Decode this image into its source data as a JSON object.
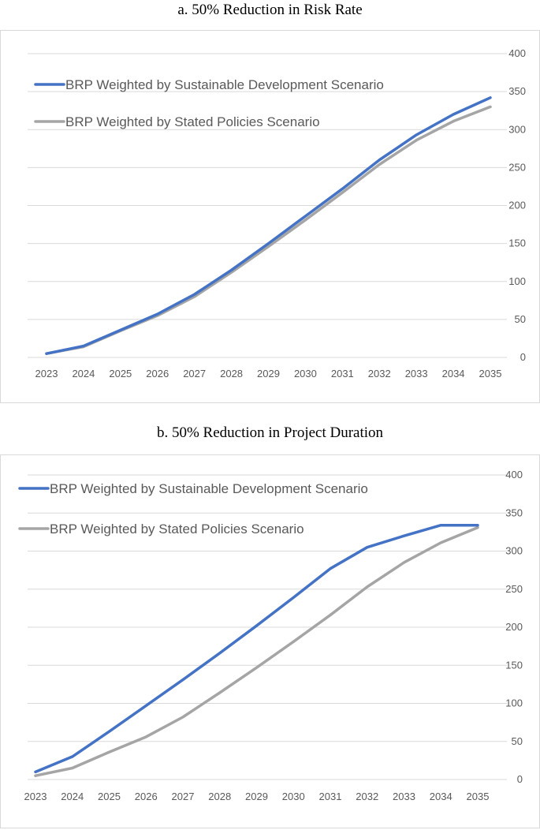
{
  "chart_data": [
    {
      "type": "line",
      "title": "a. 50% Reduction in Risk Rate",
      "categories": [
        "2023",
        "2024",
        "2025",
        "2026",
        "2027",
        "2028",
        "2029",
        "2030",
        "2031",
        "2032",
        "2033",
        "2034",
        "2035"
      ],
      "series": [
        {
          "name": "BRP Weighted by Sustainable Development Scenario",
          "color": "#4472C4",
          "values": [
            5,
            15,
            36,
            57,
            83,
            115,
            150,
            186,
            222,
            260,
            293,
            320,
            342
          ]
        },
        {
          "name": "BRP Weighted by Stated Policies Scenario",
          "color": "#A5A5A5",
          "values": [
            5,
            14,
            35,
            55,
            80,
            112,
            146,
            181,
            217,
            254,
            286,
            311,
            330
          ]
        }
      ],
      "ylim": [
        0,
        400
      ],
      "yticks": [
        "0",
        "50",
        "100",
        "150",
        "200",
        "250",
        "300",
        "350",
        "400"
      ],
      "grid": true,
      "legend": "top-left"
    },
    {
      "type": "line",
      "title": "b. 50% Reduction in Project Duration",
      "categories": [
        "2023",
        "2024",
        "2025",
        "2026",
        "2027",
        "2028",
        "2029",
        "2030",
        "2031",
        "2032",
        "2033",
        "2034",
        "2035"
      ],
      "series": [
        {
          "name": "BRP Weighted by Sustainable Development Scenario",
          "color": "#4472C4",
          "values": [
            10,
            30,
            63,
            97,
            131,
            166,
            202,
            239,
            277,
            305,
            320,
            334,
            334
          ]
        },
        {
          "name": "BRP Weighted by Stated Policies Scenario",
          "color": "#A5A5A5",
          "values": [
            5,
            15,
            36,
            56,
            82,
            114,
            147,
            181,
            216,
            253,
            285,
            311,
            331
          ]
        }
      ],
      "ylim": [
        0,
        400
      ],
      "yticks": [
        "0",
        "50",
        "100",
        "150",
        "200",
        "250",
        "300",
        "350",
        "400"
      ],
      "grid": true,
      "legend": "top-left"
    }
  ]
}
